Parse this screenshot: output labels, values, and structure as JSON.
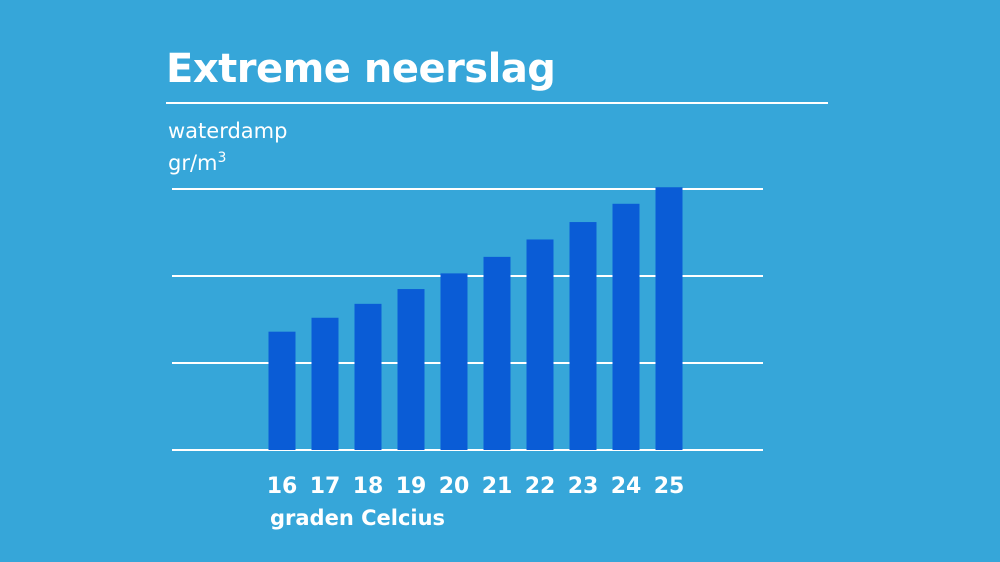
{
  "colors": {
    "background": "#36a6d9",
    "bar": "#0a5cd6",
    "text": "#ffffff",
    "grid": "#ffffff"
  },
  "header": {
    "title": "Extreme neerslag"
  },
  "axis": {
    "y_label_line1": "waterdamp",
    "y_label_line2_base": "gr/m",
    "y_label_line2_sup": "3",
    "x_label": "graden Celcius"
  },
  "chart_data": {
    "type": "bar",
    "title": "Extreme neerslag",
    "xlabel": "graden Celcius",
    "ylabel": "waterdamp gr/m3",
    "categories": [
      "16",
      "17",
      "18",
      "19",
      "20",
      "21",
      "22",
      "23",
      "24",
      "25"
    ],
    "values": [
      13.6,
      15.2,
      16.8,
      18.5,
      20.3,
      22.2,
      24.2,
      26.2,
      28.3,
      30.2
    ],
    "ylim": [
      0,
      33
    ],
    "grid": true,
    "y_tick_labels_shown": false
  }
}
